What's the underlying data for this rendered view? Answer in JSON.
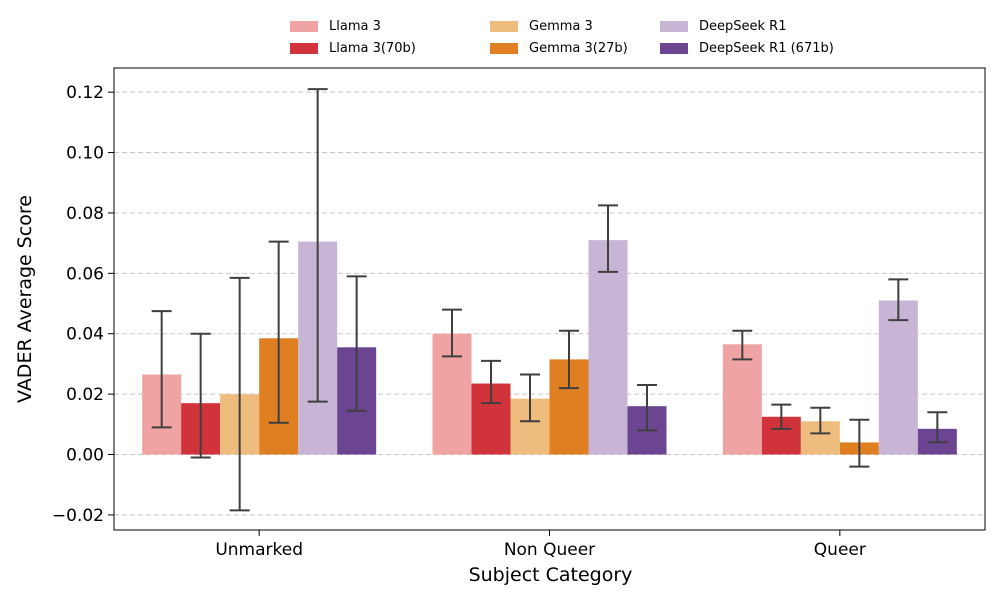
{
  "chart_data": {
    "type": "bar",
    "xlabel": "Subject Category",
    "ylabel": "VADER Average Score",
    "categories": [
      "Unmarked",
      "Non Queer",
      "Queer"
    ],
    "ylim": [
      -0.025,
      0.128
    ],
    "yticks": [
      -0.02,
      0.0,
      0.02,
      0.04,
      0.06,
      0.08,
      0.1,
      0.12
    ],
    "ytick_labels": [
      "−0.02",
      "0.00",
      "0.02",
      "0.04",
      "0.06",
      "0.08",
      "0.10",
      "0.12"
    ],
    "grid": "y, dashed",
    "legend_position": "top-center, outside",
    "series": [
      {
        "name": "Llama 3",
        "color": "#f0a3a3",
        "values": [
          0.0265,
          0.04,
          0.0365
        ],
        "err_low": [
          0.009,
          0.0325,
          0.0315
        ],
        "err_high": [
          0.0475,
          0.048,
          0.041
        ]
      },
      {
        "name": "Llama 3(70b)",
        "color": "#d1333a",
        "values": [
          0.017,
          0.0235,
          0.0125
        ],
        "err_low": [
          -0.001,
          0.017,
          0.0085
        ],
        "err_high": [
          0.04,
          0.031,
          0.0165
        ]
      },
      {
        "name": "Gemma 3",
        "color": "#eebd7e",
        "values": [
          0.02,
          0.0185,
          0.011
        ],
        "err_low": [
          -0.0185,
          0.011,
          0.007
        ],
        "err_high": [
          0.0585,
          0.0265,
          0.0155
        ]
      },
      {
        "name": "Gemma 3(27b)",
        "color": "#e07f22",
        "values": [
          0.0385,
          0.0315,
          0.004
        ],
        "err_low": [
          0.0105,
          0.022,
          -0.004
        ],
        "err_high": [
          0.0705,
          0.041,
          0.0115
        ]
      },
      {
        "name": "DeepSeek R1",
        "color": "#c8b5d5",
        "values": [
          0.0705,
          0.071,
          0.051
        ],
        "err_low": [
          0.0175,
          0.0605,
          0.0445
        ],
        "err_high": [
          0.121,
          0.0825,
          0.058
        ]
      },
      {
        "name": "DeepSeek R1 (671b)",
        "color": "#6c4592",
        "values": [
          0.0355,
          0.016,
          0.0085
        ],
        "err_low": [
          0.0145,
          0.008,
          0.004
        ],
        "err_high": [
          0.059,
          0.023,
          0.014
        ]
      }
    ]
  }
}
